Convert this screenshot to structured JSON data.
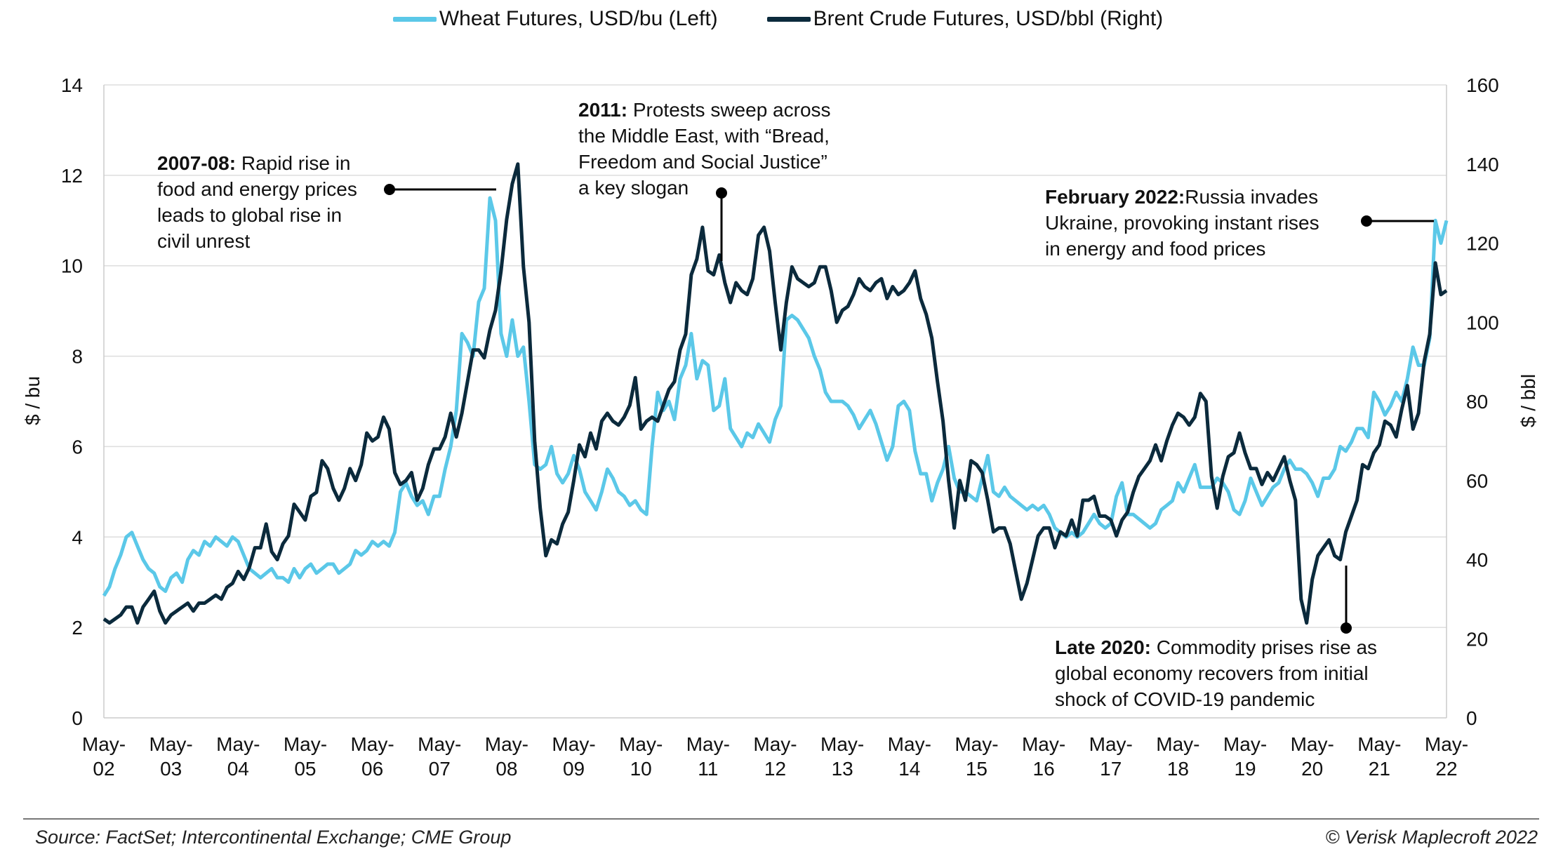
{
  "legend": {
    "wheat": "Wheat Futures, USD/bu (Left)",
    "brent": "Brent Crude Futures, USD/bbl (Right)"
  },
  "colors": {
    "wheat": "#5BC8E8",
    "brent": "#0B2A3C",
    "grid": "#DDDDDD"
  },
  "annotations": {
    "a2007": {
      "bold": "2007-08:",
      "lines": [
        " Rapid rise in",
        "food and energy prices",
        "leads to global rise in",
        "civil unrest"
      ]
    },
    "a2011": {
      "bold": "2011:",
      "lines": " Protests sweep across|the Middle East, with “Bread,|Freedom and Social Justice”|a key slogan"
    },
    "a2022": {
      "bold": "February 2022:",
      "lines": [
        "Russia invades",
        "Ukraine, provoking instant rises",
        "in energy and food prices"
      ]
    },
    "a2020": {
      "bold": "Late 2020:",
      "lines": [
        " Commodity prises rise as",
        "global economy recovers from initial",
        "shock of COVID-19 pandemic"
      ]
    }
  },
  "footer": {
    "source": "Source: FactSet; Intercontinental Exchange; CME Group",
    "copyright": "© Verisk Maplecroft 2022"
  },
  "chart_data": {
    "type": "line",
    "xlabel": "",
    "x_ticks": [
      "May-02",
      "May-03",
      "May-04",
      "May-05",
      "May-06",
      "May-07",
      "May-08",
      "May-09",
      "May-10",
      "May-11",
      "May-12",
      "May-13",
      "May-14",
      "May-15",
      "May-16",
      "May-17",
      "May-18",
      "May-19",
      "May-20",
      "May-21",
      "May-22"
    ],
    "x_frequency": "monthly",
    "y_left": {
      "label": "$ / bu",
      "ticks": [
        0,
        2,
        4,
        6,
        8,
        10,
        12,
        14
      ],
      "range": [
        0,
        14
      ]
    },
    "y_right": {
      "label": "$ / bbl",
      "ticks": [
        0,
        20,
        40,
        60,
        80,
        100,
        120,
        140,
        160
      ],
      "range": [
        0,
        160
      ]
    },
    "grid": true,
    "legend_position": "top",
    "series": [
      {
        "name": "Wheat Futures, USD/bu (Left)",
        "axis": "left",
        "values": [
          2.7,
          2.9,
          3.3,
          3.6,
          4.0,
          4.1,
          3.8,
          3.5,
          3.3,
          3.2,
          2.9,
          2.8,
          3.1,
          3.2,
          3.0,
          3.5,
          3.7,
          3.6,
          3.9,
          3.8,
          4.0,
          3.9,
          3.8,
          4.0,
          3.9,
          3.6,
          3.3,
          3.2,
          3.1,
          3.2,
          3.3,
          3.1,
          3.1,
          3.0,
          3.3,
          3.1,
          3.3,
          3.4,
          3.2,
          3.3,
          3.4,
          3.4,
          3.2,
          3.3,
          3.4,
          3.7,
          3.6,
          3.7,
          3.9,
          3.8,
          3.9,
          3.8,
          4.1,
          5.0,
          5.2,
          4.9,
          4.7,
          4.8,
          4.5,
          4.9,
          4.9,
          5.5,
          6.0,
          6.8,
          8.5,
          8.3,
          8.0,
          9.2,
          9.5,
          11.5,
          11.0,
          8.5,
          8.0,
          8.8,
          8.0,
          8.2,
          7.0,
          5.6,
          5.5,
          5.6,
          6.0,
          5.4,
          5.2,
          5.4,
          5.8,
          5.5,
          5.0,
          4.8,
          4.6,
          5.0,
          5.5,
          5.3,
          5.0,
          4.9,
          4.7,
          4.8,
          4.6,
          4.5,
          6.0,
          7.2,
          6.8,
          7.0,
          6.6,
          7.5,
          7.8,
          8.5,
          7.5,
          7.9,
          7.8,
          6.8,
          6.9,
          7.5,
          6.4,
          6.2,
          6.0,
          6.3,
          6.2,
          6.5,
          6.3,
          6.1,
          6.6,
          6.9,
          8.8,
          8.9,
          8.8,
          8.6,
          8.4,
          8.0,
          7.7,
          7.2,
          7.0,
          7.0,
          7.0,
          6.9,
          6.7,
          6.4,
          6.6,
          6.8,
          6.5,
          6.1,
          5.7,
          6.0,
          6.9,
          7.0,
          6.8,
          5.9,
          5.4,
          5.4,
          4.8,
          5.2,
          5.5,
          6.0,
          5.3,
          5.0,
          5.0,
          4.9,
          4.8,
          5.3,
          5.8,
          5.0,
          4.9,
          5.1,
          4.9,
          4.8,
          4.7,
          4.6,
          4.7,
          4.6,
          4.7,
          4.5,
          4.2,
          4.1,
          4.0,
          4.1,
          4.0,
          4.1,
          4.3,
          4.5,
          4.3,
          4.2,
          4.3,
          4.9,
          5.2,
          4.5,
          4.5,
          4.4,
          4.3,
          4.2,
          4.3,
          4.6,
          4.7,
          4.8,
          5.2,
          5.0,
          5.3,
          5.6,
          5.1,
          5.1,
          5.1,
          5.3,
          5.2,
          5.0,
          4.6,
          4.5,
          4.8,
          5.3,
          5.0,
          4.7,
          4.9,
          5.1,
          5.2,
          5.5,
          5.7,
          5.5,
          5.5,
          5.4,
          5.2,
          4.9,
          5.3,
          5.3,
          5.5,
          6.0,
          5.9,
          6.1,
          6.4,
          6.4,
          6.2,
          7.2,
          7.0,
          6.7,
          6.9,
          7.2,
          7.0,
          7.5,
          8.2,
          7.8,
          7.8,
          8.4,
          11.0,
          10.5,
          11.0
        ]
      },
      {
        "name": "Brent Crude Futures, USD/bbl (Right)",
        "axis": "right",
        "values": [
          25,
          24,
          25,
          26,
          28,
          28,
          24,
          28,
          30,
          32,
          27,
          24,
          26,
          27,
          28,
          29,
          27,
          29,
          29,
          30,
          31,
          30,
          33,
          34,
          37,
          35,
          38,
          43,
          43,
          49,
          42,
          40,
          44,
          46,
          54,
          52,
          50,
          56,
          57,
          65,
          63,
          58,
          55,
          58,
          63,
          60,
          64,
          72,
          70,
          71,
          76,
          73,
          62,
          59,
          60,
          62,
          55,
          58,
          64,
          68,
          68,
          71,
          77,
          71,
          77,
          85,
          93,
          93,
          91,
          98,
          103,
          113,
          126,
          135,
          140,
          114,
          100,
          70,
          53,
          41,
          45,
          44,
          49,
          52,
          60,
          69,
          66,
          72,
          68,
          75,
          77,
          75,
          74,
          76,
          79,
          86,
          73,
          75,
          76,
          75,
          79,
          83,
          85,
          93,
          97,
          112,
          116,
          124,
          113,
          112,
          117,
          110,
          105,
          110,
          108,
          107,
          111,
          122,
          124,
          118,
          105,
          93,
          105,
          114,
          111,
          110,
          109,
          110,
          114,
          114,
          108,
          100,
          103,
          104,
          107,
          111,
          109,
          108,
          110,
          111,
          106,
          109,
          107,
          108,
          110,
          113,
          106,
          102,
          96,
          85,
          75,
          60,
          48,
          60,
          55,
          65,
          64,
          62,
          55,
          47,
          48,
          48,
          44,
          37,
          30,
          34,
          40,
          46,
          48,
          48,
          43,
          47,
          46,
          50,
          46,
          55,
          55,
          56,
          51,
          51,
          50,
          46,
          50,
          52,
          57,
          61,
          63,
          65,
          69,
          65,
          70,
          74,
          77,
          76,
          74,
          76,
          82,
          80,
          61,
          53,
          61,
          66,
          67,
          72,
          67,
          63,
          63,
          59,
          62,
          60,
          63,
          66,
          60,
          55,
          30,
          24,
          35,
          41,
          43,
          45,
          41,
          40,
          47,
          51,
          55,
          64,
          63,
          67,
          69,
          75,
          74,
          71,
          78,
          84,
          73,
          77,
          90,
          97,
          115,
          107,
          108
        ]
      }
    ]
  }
}
